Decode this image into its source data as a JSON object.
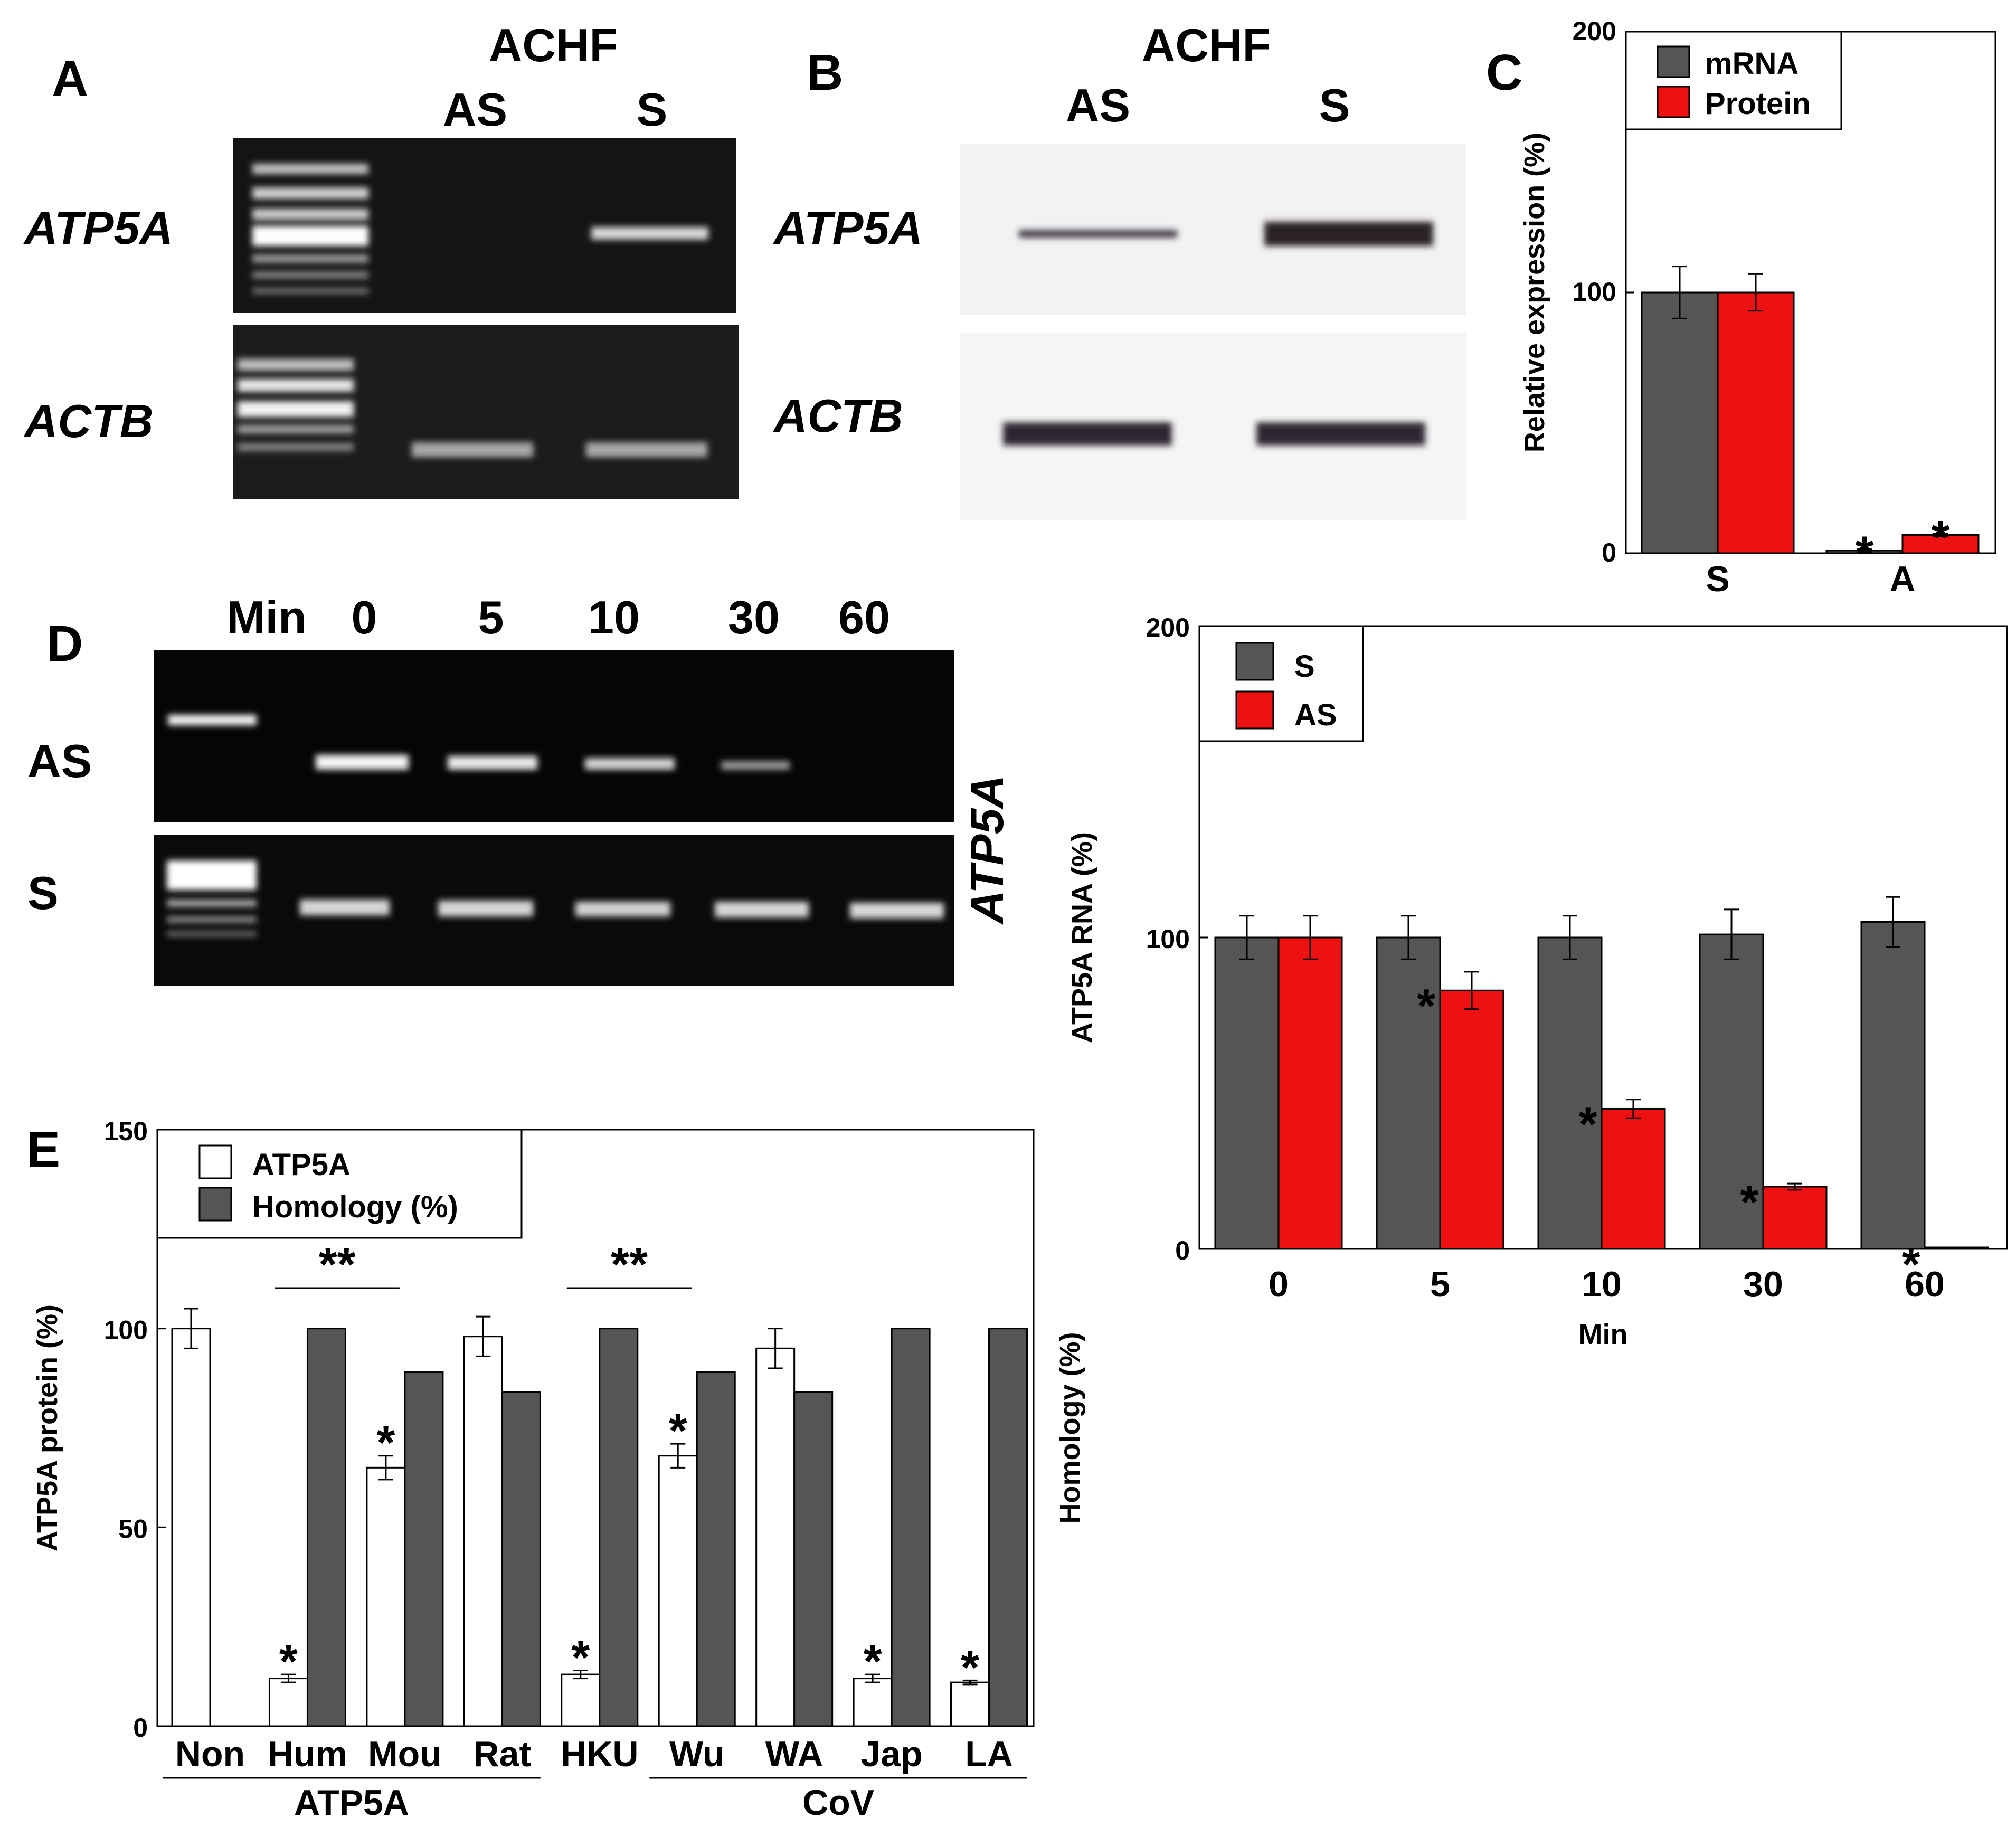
{
  "panels": {
    "a": {
      "letter": "A",
      "header": "ACHF",
      "lanes": [
        "AS",
        "S"
      ],
      "rows": [
        "ATP5A",
        "ACTB"
      ]
    },
    "b": {
      "letter": "B",
      "header": "ACHF",
      "lanes": [
        "AS",
        "S"
      ],
      "rows": [
        "ATP5A",
        "ACTB"
      ]
    },
    "d_gel": {
      "letter": "D",
      "lane_header": [
        "Min",
        "0",
        "5",
        "10",
        "30",
        "60"
      ],
      "rows": [
        "AS",
        "S"
      ],
      "side_label": "ATP5A"
    }
  },
  "chart_data": [
    {
      "id": "C",
      "type": "bar",
      "panel": "C",
      "categories": [
        "S",
        "A"
      ],
      "series": [
        {
          "name": "mRNA",
          "color": "#555555",
          "values": [
            100,
            1
          ],
          "errors": [
            10,
            0.5
          ]
        },
        {
          "name": "Protein",
          "color": "#ee1111",
          "values": [
            100,
            7
          ],
          "errors": [
            7,
            0.5
          ]
        }
      ],
      "significance": [
        {
          "category": "A",
          "series": "mRNA",
          "mark": "*"
        },
        {
          "category": "A",
          "series": "Protein",
          "mark": "*"
        }
      ],
      "ylabel": "Relative expression (%)",
      "xlabel": "",
      "ylim": [
        0,
        200
      ],
      "yticks": [
        "0",
        "100",
        "200"
      ],
      "legend": "top-left"
    },
    {
      "id": "D",
      "type": "bar",
      "panel": "D",
      "categories": [
        "0",
        "5",
        "10",
        "30",
        "60"
      ],
      "series": [
        {
          "name": "S",
          "color": "#555555",
          "values": [
            100,
            100,
            100,
            101,
            105
          ],
          "errors": [
            7,
            7,
            7,
            8,
            8
          ]
        },
        {
          "name": "AS",
          "color": "#ee1111",
          "values": [
            100,
            83,
            45,
            20,
            0
          ],
          "errors": [
            7,
            6,
            3,
            1,
            0
          ]
        }
      ],
      "significance": [
        {
          "category": "5",
          "mark": "*"
        },
        {
          "category": "10",
          "mark": "*"
        },
        {
          "category": "30",
          "mark": "*"
        },
        {
          "category": "60",
          "mark": "*"
        }
      ],
      "ylabel": "ATP5A RNA (%)",
      "xlabel": "Min",
      "ylim": [
        0,
        200
      ],
      "yticks": [
        "0",
        "100",
        "200"
      ],
      "legend": "top-left"
    },
    {
      "id": "E",
      "type": "bar",
      "panel": "E",
      "categories": [
        "Non",
        "Hum",
        "Mou",
        "Rat",
        "HKU",
        "Wu",
        "WA",
        "Jap",
        "LA"
      ],
      "series": [
        {
          "name": "ATP5A",
          "color": "#ffffff",
          "values": [
            100,
            12,
            65,
            98,
            13,
            68,
            95,
            12,
            11
          ],
          "errors": [
            5,
            1,
            3,
            5,
            1,
            3,
            5,
            1,
            0.5
          ]
        },
        {
          "name": "Homology (%)",
          "color": "#555555",
          "values": [
            null,
            100,
            89,
            84,
            100,
            89,
            84,
            100,
            100
          ]
        }
      ],
      "significance": [
        {
          "category": "Hum",
          "mark": "*"
        },
        {
          "category": "Mou",
          "mark": "*"
        },
        {
          "category": "HKU",
          "mark": "*"
        },
        {
          "category": "Wu",
          "mark": "*"
        },
        {
          "category": "Jap",
          "mark": "*"
        },
        {
          "category": "LA",
          "mark": "*"
        }
      ],
      "brackets": [
        {
          "from": "Hum",
          "to": "Mou",
          "mark": "**"
        },
        {
          "from": "HKU",
          "to": "Wu",
          "mark": "**"
        }
      ],
      "groups": [
        {
          "label": "ATP5A",
          "from": "Non",
          "to": "Rat"
        },
        {
          "label": "CoV",
          "from": "Wu",
          "to": "LA"
        }
      ],
      "ylabel": "ATP5A protein (%)",
      "y2label": "Homology (%)",
      "ylim": [
        0,
        150
      ],
      "yticks": [
        "0",
        "50",
        "100",
        "150"
      ],
      "legend": "top-left"
    }
  ]
}
